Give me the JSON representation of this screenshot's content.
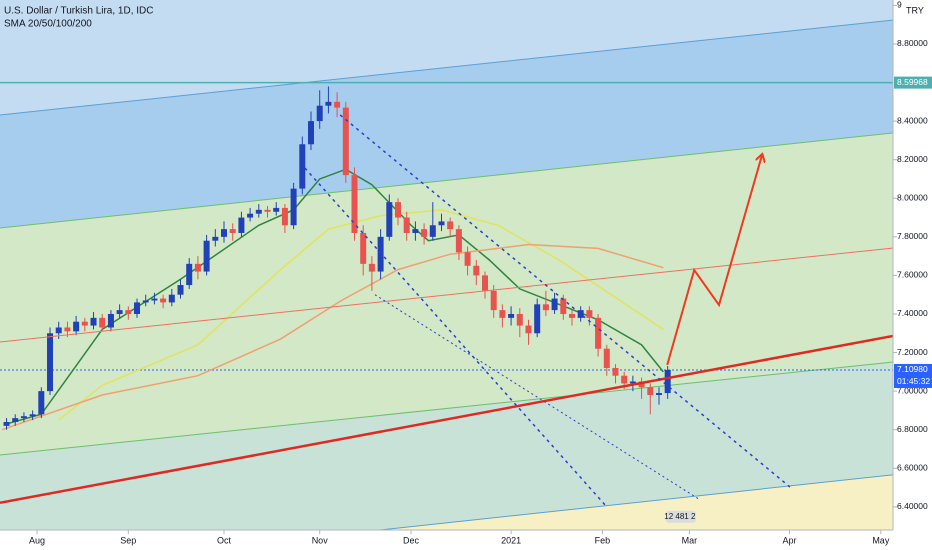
{
  "chart_data": {
    "type": "candlestick",
    "title": "U.S. Dollar / Turkish Lira, 1D, IDC",
    "subtitle": "SMA 20/50/100/200",
    "currency_label": "TRY",
    "xlim": [
      -8.5,
      196.8
    ],
    "ylim": [
      6.28,
      9.028
    ],
    "xticks": [
      {
        "value": 0,
        "label": "Aug"
      },
      {
        "value": 21,
        "label": "Sep"
      },
      {
        "value": 43,
        "label": "Oct"
      },
      {
        "value": 65,
        "label": "Nov"
      },
      {
        "value": 86,
        "label": "Dec"
      },
      {
        "value": 109,
        "label": "2021"
      },
      {
        "value": 130,
        "label": "Feb"
      },
      {
        "value": 150,
        "label": "Mar"
      },
      {
        "value": 173,
        "label": "Apr"
      },
      {
        "value": 194,
        "label": "May"
      }
    ],
    "yticks": [
      {
        "value": 6.4,
        "label": "6.40000"
      },
      {
        "value": 6.6,
        "label": "6.60000"
      },
      {
        "value": 6.8,
        "label": "6.80000"
      },
      {
        "value": 7,
        "label": "7.00000"
      },
      {
        "value": 7.2,
        "label": "7.20000"
      },
      {
        "value": 7.4,
        "label": "7.40000"
      },
      {
        "value": 7.6,
        "label": "7.60000"
      },
      {
        "value": 7.8,
        "label": "7.80000"
      },
      {
        "value": 8,
        "label": "8.00000"
      },
      {
        "value": 8.2,
        "label": "8.20000"
      },
      {
        "value": 8.4,
        "label": "8.40000"
      },
      {
        "value": 8.8,
        "label": "8.80000"
      },
      {
        "value": 9,
        "label": "9"
      }
    ],
    "up_color": "#2141b8",
    "down_color": "#e8524f",
    "candles": {
      "x": [
        -7,
        -5,
        -3,
        -1,
        1,
        3,
        5,
        7,
        9,
        11,
        13,
        15,
        17,
        19,
        21,
        23,
        25,
        27,
        29,
        31,
        33,
        35,
        37,
        39,
        41,
        43,
        45,
        47,
        49,
        51,
        53,
        55,
        57,
        59,
        61,
        63,
        65,
        67,
        69,
        71,
        73,
        75,
        77,
        79,
        81,
        83,
        85,
        87,
        89,
        91,
        93,
        95,
        97,
        99,
        101,
        103,
        105,
        107,
        109,
        111,
        113,
        115,
        117,
        119,
        121,
        123,
        125,
        127,
        129,
        131,
        133,
        135,
        137,
        139,
        141,
        143,
        145
      ],
      "open": [
        6.82,
        6.84,
        6.86,
        6.87,
        6.88,
        7.0,
        7.3,
        7.33,
        7.31,
        7.36,
        7.34,
        7.38,
        7.33,
        7.4,
        7.42,
        7.4,
        7.46,
        7.47,
        7.48,
        7.46,
        7.5,
        7.55,
        7.66,
        7.62,
        7.78,
        7.8,
        7.84,
        7.82,
        7.9,
        7.92,
        7.94,
        7.93,
        7.95,
        7.86,
        8.05,
        8.28,
        8.4,
        8.48,
        8.5,
        8.47,
        8.12,
        7.82,
        7.66,
        7.62,
        7.8,
        7.98,
        7.9,
        7.82,
        7.84,
        7.8,
        7.86,
        7.88,
        7.84,
        7.72,
        7.65,
        7.6,
        7.52,
        7.42,
        7.38,
        7.4,
        7.34,
        7.3,
        7.45,
        7.42,
        7.48,
        7.4,
        7.38,
        7.42,
        7.38,
        7.22,
        7.12,
        7.08,
        7.04,
        7.05,
        7.02,
        6.98,
        6.99
      ],
      "high": [
        6.86,
        6.88,
        6.89,
        6.9,
        7.02,
        7.33,
        7.36,
        7.36,
        7.39,
        7.38,
        7.41,
        7.4,
        7.42,
        7.45,
        7.44,
        7.48,
        7.5,
        7.51,
        7.5,
        7.53,
        7.58,
        7.69,
        7.7,
        7.81,
        7.84,
        7.88,
        7.87,
        7.93,
        7.95,
        7.97,
        7.96,
        7.98,
        7.97,
        8.08,
        8.32,
        8.45,
        8.56,
        8.58,
        8.55,
        8.5,
        8.16,
        7.86,
        7.7,
        7.84,
        8.02,
        8.0,
        7.93,
        7.88,
        7.87,
        7.98,
        7.92,
        7.9,
        7.86,
        7.75,
        7.68,
        7.62,
        7.55,
        7.45,
        7.44,
        7.43,
        7.37,
        7.48,
        7.52,
        7.51,
        7.5,
        7.42,
        7.44,
        7.44,
        7.4,
        7.24,
        7.14,
        7.1,
        7.08,
        7.07,
        7.04,
        7.02,
        7.13
      ],
      "low": [
        6.8,
        6.82,
        6.84,
        6.85,
        6.86,
        6.98,
        7.27,
        7.28,
        7.29,
        7.31,
        7.32,
        7.31,
        7.31,
        7.38,
        7.37,
        7.38,
        7.44,
        7.45,
        7.43,
        7.44,
        7.48,
        7.53,
        7.58,
        7.6,
        7.75,
        7.77,
        7.78,
        7.8,
        7.88,
        7.9,
        7.9,
        7.91,
        7.82,
        7.84,
        8.02,
        8.25,
        8.36,
        8.44,
        8.42,
        8.08,
        7.78,
        7.6,
        7.52,
        7.58,
        7.78,
        7.86,
        7.78,
        7.78,
        7.76,
        7.78,
        7.83,
        7.8,
        7.68,
        7.6,
        7.55,
        7.48,
        7.38,
        7.33,
        7.34,
        7.28,
        7.24,
        7.28,
        7.39,
        7.4,
        7.37,
        7.34,
        7.36,
        7.34,
        7.18,
        7.08,
        7.04,
        7.01,
        7.0,
        6.96,
        6.88,
        6.93,
        6.96
      ],
      "close": [
        6.84,
        6.86,
        6.87,
        6.88,
        7.0,
        7.3,
        7.33,
        7.31,
        7.36,
        7.34,
        7.38,
        7.33,
        7.4,
        7.42,
        7.4,
        7.46,
        7.47,
        7.48,
        7.46,
        7.5,
        7.55,
        7.66,
        7.62,
        7.78,
        7.8,
        7.84,
        7.82,
        7.9,
        7.92,
        7.94,
        7.93,
        7.95,
        7.86,
        8.05,
        8.28,
        8.4,
        8.48,
        8.5,
        8.47,
        8.12,
        7.82,
        7.66,
        7.62,
        7.8,
        7.98,
        7.9,
        7.82,
        7.84,
        7.8,
        7.86,
        7.88,
        7.84,
        7.72,
        7.65,
        7.6,
        7.52,
        7.42,
        7.38,
        7.4,
        7.34,
        7.3,
        7.45,
        7.42,
        7.48,
        7.4,
        7.38,
        7.42,
        7.38,
        7.22,
        7.12,
        7.08,
        7.04,
        7.05,
        7.02,
        6.98,
        6.99,
        7.1098
      ]
    },
    "series": [
      {
        "color": "#2e8540",
        "x": [
          -7,
          1,
          15,
          33,
          51,
          59,
          65,
          71,
          77,
          80,
          86,
          90,
          97,
          104,
          111,
          120,
          129,
          139,
          144
        ],
        "values": [
          6.83,
          6.88,
          7.32,
          7.58,
          7.86,
          7.94,
          8.1,
          8.15,
          8.07,
          8.0,
          7.86,
          7.78,
          7.81,
          7.68,
          7.53,
          7.45,
          7.37,
          7.24,
          7.1
        ]
      },
      {
        "color": "#e3e35a",
        "x": [
          5,
          15,
          37,
          56,
          67,
          79,
          93,
          106,
          120,
          134,
          144
        ],
        "values": [
          6.85,
          7.03,
          7.24,
          7.63,
          7.84,
          7.91,
          7.94,
          7.86,
          7.68,
          7.47,
          7.32
        ]
      },
      {
        "color": "#f0a070",
        "x": [
          -8,
          15,
          37,
          56,
          70,
          83,
          95,
          113,
          129,
          144
        ],
        "values": [
          6.8,
          6.98,
          7.08,
          7.27,
          7.47,
          7.63,
          7.71,
          7.76,
          7.74,
          7.64
        ]
      }
    ],
    "channel": {
      "lines": [
        {
          "color": "#5a9fd4",
          "points": [
            [
              -8.5,
              8.432
            ],
            [
              196.8,
              8.924
            ]
          ]
        },
        {
          "color": "#6cbf6c",
          "points": [
            [
              -8.5,
              7.846
            ],
            [
              196.8,
              8.339
            ]
          ]
        },
        {
          "color": "#6cbf6c",
          "points": [
            [
              -8.5,
              6.669
            ],
            [
              196.8,
              7.151
            ]
          ]
        },
        {
          "color": "#5a9fd4",
          "points": [
            [
              78.9,
              6.28
            ],
            [
              196.8,
              6.566
            ]
          ]
        }
      ],
      "fills": [
        "#c4dcf2",
        "#a7cdee",
        "#d2e8c6",
        "#c9e2d8",
        "#f6f0c4"
      ]
    },
    "drawings": [
      {
        "color": "#f07060",
        "width": 1,
        "dash": "",
        "points": [
          [
            -8.5,
            7.255
          ],
          [
            196.8,
            7.742
          ]
        ]
      },
      {
        "color": "#e02a20",
        "width": 2.5,
        "dash": "",
        "points": [
          [
            -8.5,
            6.421
          ],
          [
            196.8,
            7.286
          ]
        ]
      },
      {
        "color": "#2a3fd0",
        "width": 1.5,
        "dash": "3 4",
        "points": [
          [
            69.7,
            8.432
          ],
          [
            173.1,
            6.503
          ]
        ]
      },
      {
        "color": "#2a3fd0",
        "width": 1.5,
        "dash": "3 4",
        "points": [
          [
            61.6,
            8.157
          ],
          [
            130.6,
            6.41
          ]
        ]
      },
      {
        "color": "#2a3fd0",
        "width": 1,
        "dash": "2 3",
        "points": [
          [
            77.7,
            7.5
          ],
          [
            152.4,
            6.437
          ]
        ]
      },
      {
        "color": "#f03a20",
        "width": 2,
        "dash": "",
        "arrow": true,
        "points": [
          [
            144.9,
            7.136
          ],
          [
            151.1,
            7.628
          ],
          [
            156.8,
            7.447
          ],
          [
            166.7,
            8.225
          ]
        ]
      }
    ],
    "price_labels": [
      {
        "value": 8.59968,
        "label": "8.59968",
        "color": "#4cb0b0",
        "dash": ""
      },
      {
        "value": 7.1098,
        "label": "7.10980",
        "color": "#2962ff",
        "dash": "2 2",
        "countdown": "01:45:32"
      }
    ],
    "annotation": {
      "text": "12 481 2",
      "x": 147.8,
      "y": 6.348
    }
  }
}
